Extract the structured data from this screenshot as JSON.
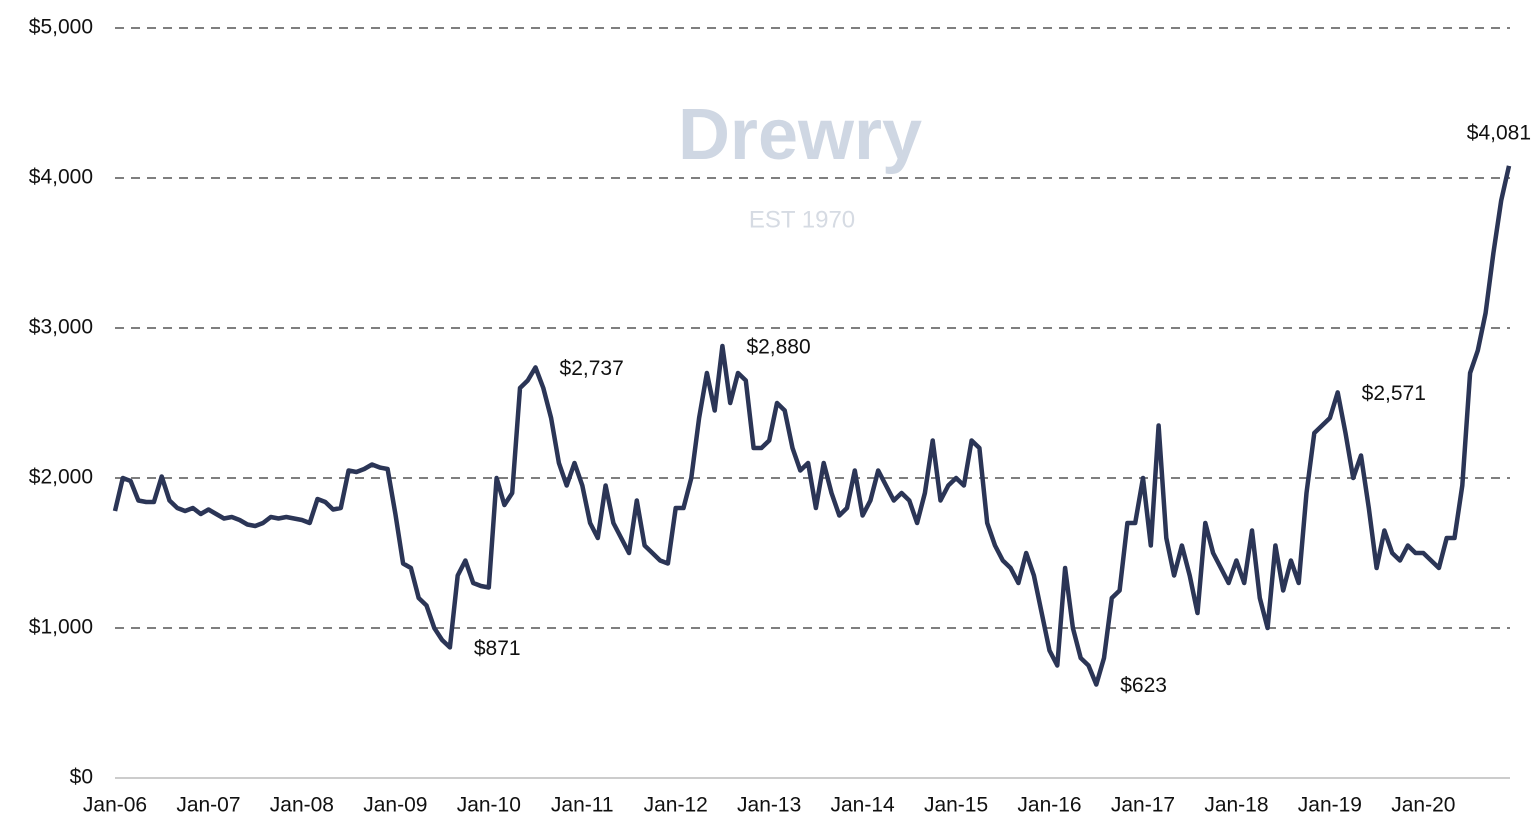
{
  "chart_data": {
    "type": "line",
    "watermark": {
      "text": "Drewry",
      "subtitle": "EST 1970"
    },
    "categories": [
      "Jan-06",
      null,
      null,
      null,
      null,
      null,
      null,
      null,
      null,
      null,
      null,
      null,
      "Jan-07",
      null,
      null,
      null,
      null,
      null,
      null,
      null,
      null,
      null,
      null,
      null,
      "Jan-08",
      null,
      null,
      null,
      null,
      null,
      null,
      null,
      null,
      null,
      null,
      null,
      "Jan-09",
      null,
      null,
      null,
      null,
      null,
      null,
      null,
      null,
      null,
      null,
      null,
      "Jan-10",
      null,
      null,
      null,
      null,
      null,
      null,
      null,
      null,
      null,
      null,
      null,
      "Jan-11",
      null,
      null,
      null,
      null,
      null,
      null,
      null,
      null,
      null,
      null,
      null,
      "Jan-12",
      null,
      null,
      null,
      null,
      null,
      null,
      null,
      null,
      null,
      null,
      null,
      "Jan-13",
      null,
      null,
      null,
      null,
      null,
      null,
      null,
      null,
      null,
      null,
      null,
      "Jan-14",
      null,
      null,
      null,
      null,
      null,
      null,
      null,
      null,
      null,
      null,
      null,
      "Jan-15",
      null,
      null,
      null,
      null,
      null,
      null,
      null,
      null,
      null,
      null,
      null,
      "Jan-16",
      null,
      null,
      null,
      null,
      null,
      null,
      null,
      null,
      null,
      null,
      null,
      "Jan-17",
      null,
      null,
      null,
      null,
      null,
      null,
      null,
      null,
      null,
      null,
      null,
      "Jan-18",
      null,
      null,
      null,
      null,
      null,
      null,
      null,
      null,
      null,
      null,
      null,
      "Jan-19",
      null,
      null,
      null,
      null,
      null,
      null,
      null,
      null,
      null,
      null,
      null,
      "Jan-20",
      null,
      null,
      null,
      null,
      null,
      null,
      null,
      null,
      null,
      null,
      null
    ],
    "values": [
      1780,
      2000,
      1980,
      1850,
      1840,
      1840,
      2010,
      1850,
      1800,
      1780,
      1800,
      1760,
      1790,
      1760,
      1730,
      1740,
      1720,
      1690,
      1680,
      1700,
      1740,
      1730,
      1740,
      1730,
      1720,
      1700,
      1860,
      1840,
      1790,
      1800,
      2050,
      2040,
      2060,
      2090,
      2070,
      2060,
      1760,
      1430,
      1400,
      1200,
      1150,
      1000,
      920,
      871,
      1350,
      1450,
      1300,
      1280,
      1270,
      2000,
      1820,
      1900,
      2600,
      2650,
      2737,
      2600,
      2400,
      2100,
      1950,
      2100,
      1950,
      1700,
      1600,
      1950,
      1700,
      1600,
      1500,
      1850,
      1550,
      1500,
      1450,
      1430,
      1800,
      1800,
      2000,
      2400,
      2700,
      2450,
      2880,
      2500,
      2700,
      2650,
      2200,
      2200,
      2250,
      2500,
      2450,
      2200,
      2050,
      2100,
      1800,
      2100,
      1900,
      1750,
      1800,
      2050,
      1750,
      1850,
      2050,
      1950,
      1850,
      1900,
      1850,
      1700,
      1900,
      2250,
      1850,
      1950,
      2000,
      1950,
      2250,
      2200,
      1700,
      1550,
      1450,
      1400,
      1300,
      1500,
      1350,
      1100,
      850,
      750,
      1400,
      1000,
      800,
      750,
      623,
      800,
      1200,
      1250,
      1700,
      1700,
      2000,
      1550,
      2350,
      1600,
      1350,
      1550,
      1350,
      1100,
      1700,
      1500,
      1400,
      1300,
      1450,
      1300,
      1650,
      1200,
      1000,
      1550,
      1250,
      1450,
      1300,
      1900,
      2300,
      2350,
      2400,
      2571,
      2300,
      2000,
      2150,
      1800,
      1400,
      1650,
      1500,
      1450,
      1550,
      1500,
      1500,
      1450,
      1400,
      1600,
      1600,
      1950,
      2700,
      2850,
      3100,
      3500,
      3850,
      4081
    ],
    "value_labels": [
      null,
      null,
      null,
      null,
      null,
      null,
      null,
      null,
      null,
      null,
      null,
      null,
      null,
      null,
      null,
      null,
      null,
      null,
      null,
      null,
      null,
      null,
      null,
      null,
      null,
      null,
      null,
      null,
      null,
      null,
      null,
      null,
      null,
      null,
      null,
      null,
      null,
      null,
      null,
      null,
      null,
      null,
      null,
      "$871",
      null,
      null,
      null,
      null,
      null,
      null,
      null,
      null,
      null,
      null,
      "$2,737",
      null,
      null,
      null,
      null,
      null,
      null,
      null,
      null,
      null,
      null,
      null,
      null,
      null,
      null,
      null,
      null,
      null,
      null,
      null,
      null,
      null,
      null,
      null,
      "$2,880",
      null,
      null,
      null,
      null,
      null,
      null,
      null,
      null,
      null,
      null,
      null,
      null,
      null,
      null,
      null,
      null,
      null,
      null,
      null,
      null,
      null,
      null,
      null,
      null,
      null,
      null,
      null,
      null,
      null,
      null,
      null,
      null,
      null,
      null,
      null,
      null,
      null,
      null,
      null,
      null,
      null,
      null,
      null,
      null,
      null,
      null,
      null,
      "$623",
      null,
      null,
      null,
      null,
      null,
      null,
      null,
      null,
      null,
      null,
      null,
      null,
      null,
      null,
      null,
      null,
      null,
      null,
      null,
      null,
      null,
      null,
      null,
      null,
      null,
      null,
      null,
      null,
      null,
      null,
      "$2,571",
      null,
      null,
      null,
      null,
      null,
      null,
      null,
      null,
      null,
      null,
      null,
      null,
      null,
      null,
      null,
      null,
      null,
      null,
      null,
      null,
      null,
      "$4,081"
    ],
    "color": "#2b3556",
    "ylim": [
      0,
      5000
    ],
    "yticks": [
      {
        "value": 0,
        "label": "$0"
      },
      {
        "value": 1000,
        "label": "$1,000"
      },
      {
        "value": 2000,
        "label": "$2,000"
      },
      {
        "value": 3000,
        "label": "$3,000"
      },
      {
        "value": 4000,
        "label": "$4,000"
      },
      {
        "value": 5000,
        "label": "$5,000"
      }
    ],
    "grid": true
  }
}
